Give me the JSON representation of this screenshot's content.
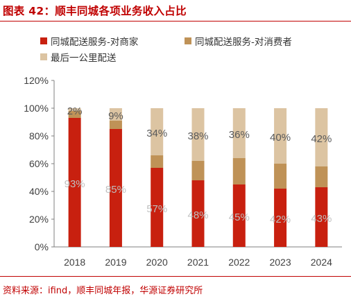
{
  "title": "图表 42：顺丰同城各项业务收入占比",
  "source": "资料来源：ifind，顺丰同城年报，华源证券研究所",
  "colors": {
    "series1": "#c8200f",
    "series2": "#bf9257",
    "series3": "#dcc4a2",
    "title": "#c00000",
    "axis": "#7f7f7f",
    "label_light": "#bfbfbf",
    "label_dark": "#595959"
  },
  "chart_data": {
    "type": "bar",
    "stacked": true,
    "categories": [
      "2018",
      "2019",
      "2020",
      "2021",
      "2022",
      "2023",
      "2024"
    ],
    "series": [
      {
        "name": "同城配送服务-对商家",
        "values": [
          93,
          85,
          57,
          48,
          45,
          42,
          43
        ],
        "labels": [
          "93%",
          "85%",
          "57%",
          "48%",
          "45%",
          "42%",
          "43%"
        ]
      },
      {
        "name": "同城配送服务-对消费者",
        "values": [
          5,
          6,
          9,
          14,
          19,
          18,
          15
        ],
        "labels": [
          "",
          "",
          "",
          "",
          "",
          "",
          ""
        ]
      },
      {
        "name": "最后一公里配送",
        "values": [
          2,
          9,
          34,
          38,
          36,
          40,
          42
        ],
        "labels": [
          "2%",
          "9%",
          "34%",
          "38%",
          "36%",
          "40%",
          "42%"
        ]
      }
    ],
    "yticks": [
      "0%",
      "20%",
      "40%",
      "60%",
      "80%",
      "100%",
      "120%"
    ],
    "ylim": [
      0,
      120
    ],
    "grid": false,
    "legend_position": "top"
  }
}
